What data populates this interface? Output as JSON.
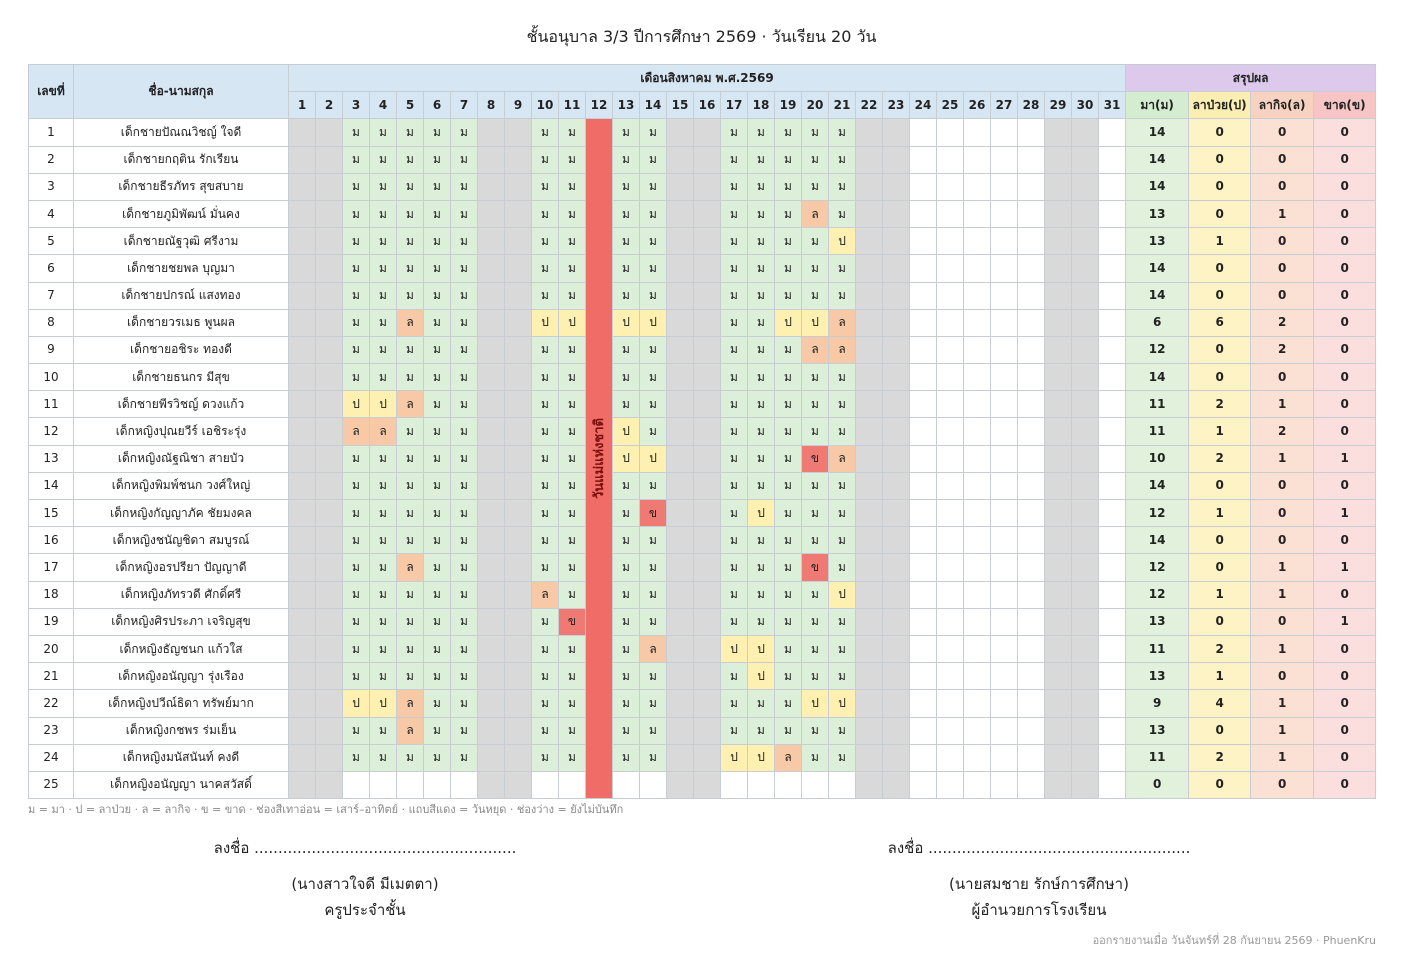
{
  "title": "ชั้นอนุบาล 3/3 ปีการศึกษา 2569 · วันเรียน 20 วัน",
  "headers": {
    "number": "เลขที่",
    "name": "ชื่อ-นามสกุล",
    "month": "เดือนสิงหาคม พ.ศ.2569",
    "summary": "สรุปผล",
    "present": "มา(ม)",
    "sick": "ลาป่วย(ป)",
    "personal": "ลากิจ(ล)",
    "absent": "ขาด(ข)"
  },
  "days": [
    "1",
    "2",
    "3",
    "4",
    "5",
    "6",
    "7",
    "8",
    "9",
    "10",
    "11",
    "12",
    "13",
    "14",
    "15",
    "16",
    "17",
    "18",
    "19",
    "20",
    "21",
    "22",
    "23",
    "24",
    "25",
    "26",
    "27",
    "28",
    "29",
    "30",
    "31"
  ],
  "weekend_days": [
    1,
    2,
    8,
    9,
    15,
    16,
    22,
    23,
    29,
    30
  ],
  "holiday_day": 12,
  "holiday_label": "วันแม่แห่งชาติ",
  "students": [
    {
      "no": "1",
      "name": "เด็กชายปัณณวิชญ์ ใจดี",
      "marks": [
        "ม",
        "ม",
        "ม",
        "ม",
        "ม",
        "ม",
        "ม",
        "ม",
        "ม",
        "ม",
        "ม",
        "ม",
        "ม",
        "ม"
      ],
      "sum": [
        "14",
        "0",
        "0",
        "0"
      ]
    },
    {
      "no": "2",
      "name": "เด็กชายกฤติน รักเรียน",
      "marks": [
        "ม",
        "ม",
        "ม",
        "ม",
        "ม",
        "ม",
        "ม",
        "ม",
        "ม",
        "ม",
        "ม",
        "ม",
        "ม",
        "ม"
      ],
      "sum": [
        "14",
        "0",
        "0",
        "0"
      ]
    },
    {
      "no": "3",
      "name": "เด็กชายธีรภัทร สุขสบาย",
      "marks": [
        "ม",
        "ม",
        "ม",
        "ม",
        "ม",
        "ม",
        "ม",
        "ม",
        "ม",
        "ม",
        "ม",
        "ม",
        "ม",
        "ม"
      ],
      "sum": [
        "14",
        "0",
        "0",
        "0"
      ]
    },
    {
      "no": "4",
      "name": "เด็กชายภูมิพัฒน์ มั่นคง",
      "marks": [
        "ม",
        "ม",
        "ม",
        "ม",
        "ม",
        "ม",
        "ม",
        "ม",
        "ม",
        "ม",
        "ม",
        "ม",
        "ล",
        "ม"
      ],
      "sum": [
        "13",
        "0",
        "1",
        "0"
      ]
    },
    {
      "no": "5",
      "name": "เด็กชายณัฐวุฒิ ศรีงาม",
      "marks": [
        "ม",
        "ม",
        "ม",
        "ม",
        "ม",
        "ม",
        "ม",
        "ม",
        "ม",
        "ม",
        "ม",
        "ม",
        "ม",
        "ป"
      ],
      "sum": [
        "13",
        "1",
        "0",
        "0"
      ]
    },
    {
      "no": "6",
      "name": "เด็กชายชยพล บุญมา",
      "marks": [
        "ม",
        "ม",
        "ม",
        "ม",
        "ม",
        "ม",
        "ม",
        "ม",
        "ม",
        "ม",
        "ม",
        "ม",
        "ม",
        "ม"
      ],
      "sum": [
        "14",
        "0",
        "0",
        "0"
      ]
    },
    {
      "no": "7",
      "name": "เด็กชายปกรณ์ แสงทอง",
      "marks": [
        "ม",
        "ม",
        "ม",
        "ม",
        "ม",
        "ม",
        "ม",
        "ม",
        "ม",
        "ม",
        "ม",
        "ม",
        "ม",
        "ม"
      ],
      "sum": [
        "14",
        "0",
        "0",
        "0"
      ]
    },
    {
      "no": "8",
      "name": "เด็กชายวรเมธ พูนผล",
      "marks": [
        "ม",
        "ม",
        "ล",
        "ม",
        "ม",
        "ป",
        "ป",
        "ป",
        "ป",
        "ม",
        "ม",
        "ป",
        "ป",
        "ล"
      ],
      "sum": [
        "6",
        "6",
        "2",
        "0"
      ]
    },
    {
      "no": "9",
      "name": "เด็กชายอชิระ ทองดี",
      "marks": [
        "ม",
        "ม",
        "ม",
        "ม",
        "ม",
        "ม",
        "ม",
        "ม",
        "ม",
        "ม",
        "ม",
        "ม",
        "ล",
        "ล"
      ],
      "sum": [
        "12",
        "0",
        "2",
        "0"
      ]
    },
    {
      "no": "10",
      "name": "เด็กชายธนกร มีสุข",
      "marks": [
        "ม",
        "ม",
        "ม",
        "ม",
        "ม",
        "ม",
        "ม",
        "ม",
        "ม",
        "ม",
        "ม",
        "ม",
        "ม",
        "ม"
      ],
      "sum": [
        "14",
        "0",
        "0",
        "0"
      ]
    },
    {
      "no": "11",
      "name": "เด็กชายพีรวิชญ์ ดวงแก้ว",
      "marks": [
        "ป",
        "ป",
        "ล",
        "ม",
        "ม",
        "ม",
        "ม",
        "ม",
        "ม",
        "ม",
        "ม",
        "ม",
        "ม",
        "ม"
      ],
      "sum": [
        "11",
        "2",
        "1",
        "0"
      ]
    },
    {
      "no": "12",
      "name": "เด็กหญิงปุณยวีร์ เอชิระรุ่ง",
      "marks": [
        "ล",
        "ล",
        "ม",
        "ม",
        "ม",
        "ม",
        "ม",
        "ป",
        "ม",
        "ม",
        "ม",
        "ม",
        "ม",
        "ม"
      ],
      "sum": [
        "11",
        "1",
        "2",
        "0"
      ]
    },
    {
      "no": "13",
      "name": "เด็กหญิงณัฐณิชา สายบัว",
      "marks": [
        "ม",
        "ม",
        "ม",
        "ม",
        "ม",
        "ม",
        "ม",
        "ป",
        "ป",
        "ม",
        "ม",
        "ม",
        "ข",
        "ล"
      ],
      "sum": [
        "10",
        "2",
        "1",
        "1"
      ]
    },
    {
      "no": "14",
      "name": "เด็กหญิงพิมพ์ชนก วงศ์ใหญ่",
      "marks": [
        "ม",
        "ม",
        "ม",
        "ม",
        "ม",
        "ม",
        "ม",
        "ม",
        "ม",
        "ม",
        "ม",
        "ม",
        "ม",
        "ม"
      ],
      "sum": [
        "14",
        "0",
        "0",
        "0"
      ]
    },
    {
      "no": "15",
      "name": "เด็กหญิงกัญญาภัค ชัยมงคล",
      "marks": [
        "ม",
        "ม",
        "ม",
        "ม",
        "ม",
        "ม",
        "ม",
        "ม",
        "ข",
        "ม",
        "ป",
        "ม",
        "ม",
        "ม"
      ],
      "sum": [
        "12",
        "1",
        "0",
        "1"
      ]
    },
    {
      "no": "16",
      "name": "เด็กหญิงชนัญชิดา สมบูรณ์",
      "marks": [
        "ม",
        "ม",
        "ม",
        "ม",
        "ม",
        "ม",
        "ม",
        "ม",
        "ม",
        "ม",
        "ม",
        "ม",
        "ม",
        "ม"
      ],
      "sum": [
        "14",
        "0",
        "0",
        "0"
      ]
    },
    {
      "no": "17",
      "name": "เด็กหญิงอรปรียา ปัญญาดี",
      "marks": [
        "ม",
        "ม",
        "ล",
        "ม",
        "ม",
        "ม",
        "ม",
        "ม",
        "ม",
        "ม",
        "ม",
        "ม",
        "ข",
        "ม"
      ],
      "sum": [
        "12",
        "0",
        "1",
        "1"
      ]
    },
    {
      "no": "18",
      "name": "เด็กหญิงภัทรวดี ศักดิ์ศรี",
      "marks": [
        "ม",
        "ม",
        "ม",
        "ม",
        "ม",
        "ล",
        "ม",
        "ม",
        "ม",
        "ม",
        "ม",
        "ม",
        "ม",
        "ป"
      ],
      "sum": [
        "12",
        "1",
        "1",
        "0"
      ]
    },
    {
      "no": "19",
      "name": "เด็กหญิงศิรประภา เจริญสุข",
      "marks": [
        "ม",
        "ม",
        "ม",
        "ม",
        "ม",
        "ม",
        "ข",
        "ม",
        "ม",
        "ม",
        "ม",
        "ม",
        "ม",
        "ม"
      ],
      "sum": [
        "13",
        "0",
        "0",
        "1"
      ]
    },
    {
      "no": "20",
      "name": "เด็กหญิงธัญชนก แก้วใส",
      "marks": [
        "ม",
        "ม",
        "ม",
        "ม",
        "ม",
        "ม",
        "ม",
        "ม",
        "ล",
        "ป",
        "ป",
        "ม",
        "ม",
        "ม"
      ],
      "sum": [
        "11",
        "2",
        "1",
        "0"
      ]
    },
    {
      "no": "21",
      "name": "เด็กหญิงอนัญญา รุ่งเรือง",
      "marks": [
        "ม",
        "ม",
        "ม",
        "ม",
        "ม",
        "ม",
        "ม",
        "ม",
        "ม",
        "ม",
        "ป",
        "ม",
        "ม",
        "ม"
      ],
      "sum": [
        "13",
        "1",
        "0",
        "0"
      ]
    },
    {
      "no": "22",
      "name": "เด็กหญิงปวีณ์ธิดา ทรัพย์มาก",
      "marks": [
        "ป",
        "ป",
        "ล",
        "ม",
        "ม",
        "ม",
        "ม",
        "ม",
        "ม",
        "ม",
        "ม",
        "ม",
        "ป",
        "ป"
      ],
      "sum": [
        "9",
        "4",
        "1",
        "0"
      ]
    },
    {
      "no": "23",
      "name": "เด็กหญิงกชพร ร่มเย็น",
      "marks": [
        "ม",
        "ม",
        "ล",
        "ม",
        "ม",
        "ม",
        "ม",
        "ม",
        "ม",
        "ม",
        "ม",
        "ม",
        "ม",
        "ม"
      ],
      "sum": [
        "13",
        "0",
        "1",
        "0"
      ]
    },
    {
      "no": "24",
      "name": "เด็กหญิงมนัสนันท์ คงดี",
      "marks": [
        "ม",
        "ม",
        "ม",
        "ม",
        "ม",
        "ม",
        "ม",
        "ม",
        "ม",
        "ป",
        "ป",
        "ล",
        "ม",
        "ม"
      ],
      "sum": [
        "11",
        "2",
        "1",
        "0"
      ]
    },
    {
      "no": "25",
      "name": "เด็กหญิงอนัญญา นาคสวัสดิ์",
      "marks": [
        "",
        "",
        "",
        "",
        "",
        "",
        "",
        "",
        "",
        "",
        "",
        "",
        "",
        ""
      ],
      "sum": [
        "0",
        "0",
        "0",
        "0"
      ]
    }
  ],
  "legend": "ม = มา · ป = ลาป่วย · ล = ลากิจ · ข = ขาด · ช่องสีเทาอ่อน = เสาร์–อาทิตย์ · แถบสีแดง = วันหยุด · ช่องว่าง = ยังไม่บันทึก",
  "signatures": [
    {
      "line": "ลงชื่อ .......................................................",
      "name": "(นางสาวใจดี มีเมตตา)",
      "role": "ครูประจำชั้น"
    },
    {
      "line": "ลงชื่อ .......................................................",
      "name": "(นายสมชาย รักษ์การศึกษา)",
      "role": "ผู้อำนวยการโรงเรียน"
    }
  ],
  "footer": "ออกรายงานเมื่อ วันจันทร์ที่ 28 กันยายน 2569 · PhuenKru"
}
